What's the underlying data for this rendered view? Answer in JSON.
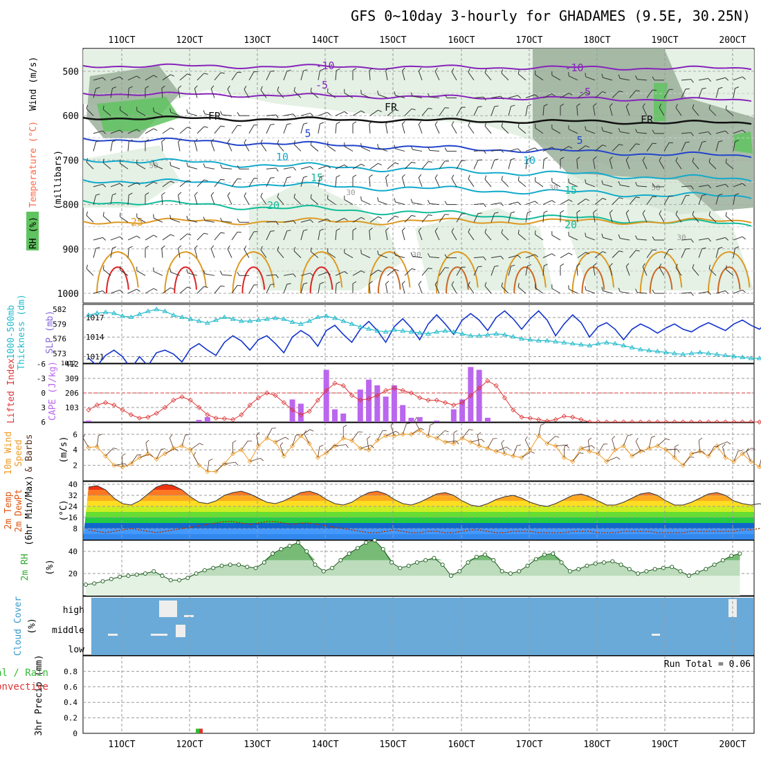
{
  "title": "GFS 0~10day 3-hourly for GHADAMES (9.5E, 30.25N)",
  "run_total": "Run Total = 0.06",
  "colors": {
    "rh_dark": "#5fc45f",
    "rh_mid": "#9aaf9a",
    "rh_light": "#dfeedf",
    "temp_purple": "#8822bb",
    "temp_blue": "#2244cc",
    "temp_cyan": "#11aacc",
    "temp_teal": "#11bb99",
    "temp_orange": "#dd9922",
    "temp_red": "#dd2222",
    "slp": "#1133cc",
    "thickness": "#22bbcc",
    "cape": "#bb66ee",
    "li": "#dd3333",
    "wind10": "#ee9922",
    "cloud_bg": "#6aaad8",
    "rh2m": "#33aa33"
  },
  "chart_data": [
    {
      "type": "line",
      "panel": "upper-air",
      "x_ticks": [
        "11OCT",
        "12OCT",
        "13OCT",
        "14OCT",
        "15OCT",
        "16OCT",
        "17OCT",
        "18OCT",
        "19OCT",
        "20OCT"
      ],
      "ylabel_left": "(millibars)",
      "ylabel_parts": [
        "RH (%)",
        "Temperature (°C)",
        "Wind (m/s)"
      ],
      "y_ticks": [
        500,
        600,
        700,
        800,
        900,
        1000
      ],
      "ylim": [
        1000,
        450
      ],
      "isotherm_labels": [
        {
          "text": "-10"
        },
        {
          "text": "-10"
        },
        {
          "text": "-5"
        },
        {
          "text": "-5"
        },
        {
          "text": "FR"
        },
        {
          "text": "FR"
        },
        {
          "text": "FR"
        },
        {
          "text": "5"
        },
        {
          "text": "5"
        },
        {
          "text": "10"
        },
        {
          "text": "10"
        },
        {
          "text": "15"
        },
        {
          "text": "15"
        },
        {
          "text": "20"
        },
        {
          "text": "20"
        },
        {
          "text": "25"
        }
      ],
      "rh_labels": [
        "50",
        "30",
        "30",
        "50",
        "30",
        "30"
      ]
    },
    {
      "type": "line",
      "panel": "slp-thickness",
      "y_left_label": "1000-500mb Thickness (dm)",
      "y_left_ticks": [
        573,
        576,
        579,
        582
      ],
      "y_right_label": "SLP (mb)",
      "y_right_ticks": [
        1011,
        1014,
        1017
      ],
      "series": [
        {
          "name": "SLP",
          "values": [
            1010.8,
            1009.6,
            1011.2,
            1012.0,
            1011.0,
            1009.2,
            1011.0,
            1009.6,
            1011.6,
            1012.0,
            1011.4,
            1010.2,
            1012.2,
            1013.0,
            1012.0,
            1011.2,
            1013.2,
            1014.2,
            1013.4,
            1012.0,
            1013.6,
            1014.2,
            1013.0,
            1011.6,
            1014.0,
            1015.0,
            1014.2,
            1012.6,
            1015.0,
            1015.8,
            1014.4,
            1013.2,
            1015.2,
            1016.4,
            1015.0,
            1013.2,
            1015.6,
            1016.8,
            1015.4,
            1013.6,
            1016.0,
            1017.4,
            1016.0,
            1014.4,
            1016.6,
            1017.6,
            1016.6,
            1015.0,
            1017.0,
            1018.0,
            1016.8,
            1015.2,
            1016.8,
            1018.0,
            1016.6,
            1014.2,
            1016.0,
            1017.4,
            1016.2,
            1014.0,
            1015.6,
            1016.2,
            1015.2,
            1013.6,
            1015.2,
            1016.0,
            1015.4,
            1014.6,
            1015.4,
            1016.0,
            1015.2,
            1014.8,
            1015.6,
            1016.2,
            1015.6,
            1015.0,
            1016.0,
            1016.6,
            1015.8,
            1015.2,
            1016.4,
            1017.2
          ]
        },
        {
          "name": "Thickness",
          "values": [
            580.8,
            581.2,
            581.4,
            581.2,
            580.6,
            580.4,
            581.0,
            581.6,
            582.0,
            581.6,
            580.8,
            580.4,
            580.0,
            579.6,
            579.2,
            579.8,
            580.4,
            580.0,
            579.6,
            579.6,
            579.8,
            580.0,
            580.2,
            580.0,
            579.4,
            579.0,
            579.6,
            580.4,
            580.6,
            580.2,
            579.6,
            579.0,
            578.4,
            578.0,
            577.6,
            577.4,
            577.8,
            577.6,
            577.4,
            577.2,
            577.0,
            577.4,
            577.6,
            577.4,
            577.0,
            576.6,
            576.6,
            576.8,
            577.0,
            576.8,
            576.4,
            576.0,
            575.8,
            575.6,
            575.6,
            575.4,
            575.2,
            575.0,
            574.8,
            574.6,
            575.0,
            575.2,
            575.0,
            574.6,
            574.2,
            573.8,
            573.6,
            573.4,
            573.2,
            573.0,
            572.8,
            573.0,
            573.2,
            573.0,
            572.8,
            572.6,
            572.4,
            572.2,
            572.0,
            572.0,
            572.2,
            572.0
          ]
        }
      ]
    },
    {
      "type": "bar",
      "panel": "lifted-index-cape",
      "y_left_label": "Lifted Index",
      "y_left_ticks": [
        "-6",
        "-3",
        "0",
        "3",
        "6"
      ],
      "y_right_label": "CAPE (J/kg)",
      "y_right_ticks": [
        103,
        206,
        309,
        412
      ],
      "series": [
        {
          "name": "CAPE",
          "values": [
            10,
            0,
            0,
            0,
            0,
            0,
            0,
            0,
            0,
            0,
            0,
            0,
            0,
            15,
            35,
            0,
            0,
            0,
            0,
            0,
            0,
            0,
            0,
            0,
            0,
            0,
            0,
            0,
            0,
            0,
            0,
            0,
            0,
            0,
            0,
            0,
            0,
            0,
            0,
            0,
            0,
            0,
            0,
            0,
            0,
            0,
            0,
            0,
            0,
            0,
            0,
            0,
            0,
            0,
            0,
            0,
            0,
            0,
            0,
            0,
            0,
            0,
            0,
            0,
            0,
            0,
            0,
            0,
            0,
            0,
            0,
            0,
            0,
            0,
            0,
            0,
            0,
            0,
            0,
            0,
            0,
            0
          ]
        },
        {
          "name": "Lifted Index",
          "values": [
            3.5,
            2.5,
            2.0,
            2.5,
            3.5,
            4.5,
            5.2,
            5.0,
            4.2,
            3.0,
            1.5,
            0.8,
            1.5,
            3.0,
            4.5,
            5.2,
            5.3,
            5.5,
            4.5,
            2.5,
            1.0,
            0.0,
            0.5,
            2.0,
            3.5,
            4.5,
            3.8,
            1.5,
            -0.5,
            -2.0,
            -1.5,
            0.5,
            1.5,
            1.2,
            0.5,
            -0.5,
            -1.0,
            -0.5,
            0.0,
            1.0,
            1.5,
            1.5,
            2.0,
            2.5,
            2.0,
            0.5,
            -1.0,
            -2.5,
            -1.5,
            1.0,
            3.5,
            5.0,
            5.2,
            5.5,
            5.8,
            5.5,
            4.8,
            5.0,
            5.5,
            6.0,
            6.0,
            6.0,
            6.0,
            6.0,
            6.0,
            6.0,
            6.0,
            6.0,
            6.0,
            6.0,
            6.0,
            6.0,
            6.0,
            6.0,
            6.0,
            6.0,
            6.0,
            6.0,
            6.0,
            6.0,
            6.0,
            6.0
          ]
        }
      ]
    },
    {
      "type": "line",
      "panel": "10m-wind",
      "y_label": "10m Wind Speed & Barbs (m/s)",
      "y_ticks": [
        2,
        4,
        6
      ],
      "series": [
        {
          "name": "10m Wind Speed",
          "values": [
            4.3,
            4.4,
            3.2,
            2.0,
            1.8,
            2.2,
            3.0,
            3.5,
            2.8,
            3.5,
            4.2,
            4.5,
            4.0,
            2.0,
            1.2,
            1.2,
            2.2,
            3.5,
            4.0,
            2.5,
            4.5,
            5.5,
            5.0,
            3.2,
            4.5,
            5.8,
            4.8,
            3.0,
            3.6,
            4.5,
            5.5,
            5.2,
            4.2,
            4.0,
            5.2,
            5.8,
            5.8,
            6.0,
            6.0,
            6.5,
            5.8,
            5.5,
            5.0,
            4.8,
            5.5,
            5.0,
            4.5,
            4.2,
            3.8,
            3.5,
            3.2,
            3.0,
            4.0,
            5.8,
            4.8,
            4.5,
            3.0,
            2.5,
            4.2,
            3.8,
            3.5,
            2.5,
            4.0,
            4.5,
            3.2,
            3.8,
            4.2,
            4.5,
            4.0,
            3.0,
            2.0,
            3.5,
            3.8,
            3.2,
            4.5,
            3.0,
            2.5,
            3.5,
            2.5,
            1.8,
            1.2,
            1.5,
            2.8
          ]
        }
      ]
    },
    {
      "type": "area",
      "panel": "2m-temp",
      "y_label": "2m Temp 2m DewPt (6hr Min/Max) (°C)",
      "y_ticks": [
        8,
        16,
        24,
        32,
        40
      ],
      "series": [
        {
          "name": "2m Temp",
          "values": [
            38,
            39,
            36,
            30,
            26,
            25,
            28,
            33,
            38,
            40,
            39,
            36,
            31,
            27,
            26,
            28,
            32,
            34,
            35,
            33,
            30,
            27,
            26,
            28,
            31,
            34,
            35,
            33,
            29,
            26,
            25,
            27,
            31,
            34,
            35,
            33,
            29,
            26,
            25,
            27,
            30,
            33,
            34,
            32,
            28,
            25,
            24,
            26,
            29,
            31,
            32,
            30,
            27,
            25,
            24,
            26,
            29,
            32,
            33,
            31,
            28,
            25,
            25,
            27,
            30,
            33,
            34,
            32,
            28,
            25,
            25,
            27,
            30,
            33,
            34,
            32,
            28,
            26,
            25,
            26,
            24
          ]
        },
        {
          "name": "2m DewPt",
          "values": [
            7,
            6,
            5,
            6,
            7,
            8,
            7,
            6,
            5,
            6,
            7,
            8,
            9,
            10,
            11,
            12,
            13,
            13,
            12,
            11,
            12,
            13,
            13,
            12,
            11,
            12,
            12,
            11,
            10,
            9,
            8,
            7,
            6,
            5,
            5,
            6,
            7,
            6,
            5,
            5,
            6,
            6,
            5,
            5,
            6,
            7,
            7,
            6,
            5,
            5,
            6,
            6,
            6,
            5,
            5,
            5,
            5,
            6,
            6,
            6,
            5,
            5,
            5,
            6,
            6,
            6,
            6,
            5,
            5,
            5,
            5,
            6,
            6,
            6,
            6,
            6,
            6,
            7,
            7,
            8,
            8
          ]
        }
      ]
    },
    {
      "type": "area",
      "panel": "2m-rh",
      "y_label": "2m RH (%)",
      "y_ticks": [
        20,
        40
      ],
      "series": [
        {
          "name": "2m RH",
          "values": [
            10,
            11,
            13,
            15,
            17,
            18,
            19,
            20,
            22,
            18,
            14,
            14,
            16,
            20,
            23,
            25,
            27,
            28,
            28,
            26,
            25,
            30,
            38,
            42,
            45,
            48,
            40,
            28,
            22,
            25,
            32,
            38,
            43,
            48,
            50,
            42,
            30,
            25,
            27,
            30,
            32,
            34,
            28,
            18,
            22,
            30,
            35,
            37,
            32,
            22,
            20,
            22,
            27,
            33,
            37,
            38,
            30,
            22,
            24,
            27,
            29,
            30,
            31,
            28,
            24,
            20,
            22,
            24,
            25,
            26,
            22,
            18,
            21,
            24,
            28,
            32,
            36,
            38
          ]
        }
      ]
    },
    {
      "type": "bar",
      "panel": "cloud-cover",
      "y_label": "Cloud Cover (%)",
      "y_categories": [
        "high",
        "middle",
        "low"
      ]
    },
    {
      "type": "bar",
      "panel": "precip",
      "y_label": "3hr Precip (mm)",
      "legend_left": [
        "Total / Rain",
        "Convective"
      ],
      "y_ticks": [
        0,
        0.2,
        0.4,
        0.6,
        0.8
      ],
      "ylim": [
        0,
        1.0
      ],
      "series": [
        {
          "name": "Total",
          "values": [
            0,
            0,
            0,
            0,
            0,
            0,
            0,
            0,
            0,
            0,
            0,
            0.06,
            0,
            0,
            0,
            0,
            0,
            0,
            0,
            0,
            0,
            0,
            0,
            0,
            0,
            0,
            0,
            0,
            0,
            0,
            0,
            0,
            0,
            0,
            0,
            0,
            0,
            0,
            0,
            0,
            0,
            0,
            0,
            0,
            0,
            0,
            0,
            0,
            0,
            0,
            0,
            0,
            0,
            0,
            0,
            0,
            0,
            0,
            0,
            0,
            0,
            0,
            0,
            0,
            0,
            0,
            0,
            0,
            0,
            0,
            0,
            0,
            0,
            0,
            0,
            0,
            0,
            0,
            0,
            0,
            0,
            0
          ]
        }
      ]
    }
  ]
}
